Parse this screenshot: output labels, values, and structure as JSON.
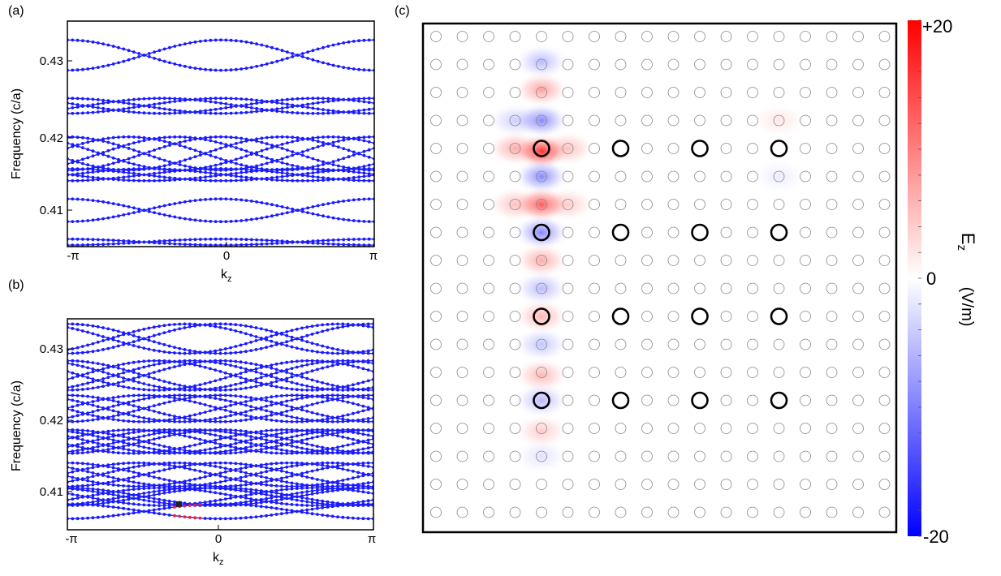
{
  "panels": {
    "a": {
      "label": "(a)",
      "ylabel": "Frequency (c/a)",
      "xlabel": "k",
      "xlabel_sub": "z",
      "xticks": [
        "-π",
        "0",
        "π"
      ],
      "yticks": [
        "0.43",
        "0.42",
        "0.41"
      ]
    },
    "b": {
      "label": "(b)",
      "ylabel": "Frequency (c/a)",
      "xlabel": "k",
      "xlabel_sub": "z",
      "xticks": [
        "-π",
        "0",
        "π"
      ],
      "yticks": [
        "0.43",
        "0.42",
        "0.41"
      ]
    },
    "c": {
      "label": "(c)",
      "colorbar_title": "E",
      "colorbar_title_sub": "z",
      "colorbar_unit": "(V/m)",
      "colorbar_ticks": [
        "+20",
        "0",
        "-20"
      ]
    }
  },
  "colors": {
    "band": "#1a1aff",
    "highlight": "#e8203a",
    "marker": "#222222",
    "cmap_pos": "#ff0000",
    "cmap_neg": "#0000ff"
  },
  "chart_data": [
    {
      "panel": "a",
      "type": "line",
      "xlabel": "kz",
      "ylabel": "Frequency (c/a)",
      "xlim": [
        -3.1416,
        3.1416
      ],
      "ylim": [
        0.4047,
        0.4345
      ],
      "grid": false,
      "band_groups": [
        {
          "center": 0.43,
          "half_width": 0.002,
          "phases": [
            0.0
          ]
        },
        {
          "center": 0.4233,
          "half_width": 0.001,
          "phases": [
            0.0,
            1.2
          ]
        },
        {
          "center": 0.417,
          "half_width": 0.0022,
          "phases": [
            0.0,
            0.9,
            1.9
          ]
        },
        {
          "center": 0.4142,
          "half_width": 0.0008,
          "phases": [
            0.0,
            1.5
          ]
        },
        {
          "center": 0.4095,
          "half_width": 0.0015,
          "phases": [
            0.0
          ]
        },
        {
          "center": 0.4053,
          "half_width": 0.0004,
          "phases": [
            0.0
          ]
        }
      ]
    },
    {
      "panel": "b",
      "type": "line",
      "xlabel": "kz",
      "ylabel": "Frequency (c/a)",
      "xlim": [
        -3.1416,
        3.1416
      ],
      "ylim": [
        0.4055,
        0.4342
      ],
      "grid": false,
      "band_groups": [
        {
          "center": 0.4315,
          "half_width": 0.002,
          "phases": [
            0.0,
            0.7
          ]
        },
        {
          "center": 0.4265,
          "half_width": 0.002,
          "phases": [
            0.0,
            0.6,
            1.3
          ]
        },
        {
          "center": 0.422,
          "half_width": 0.0018,
          "phases": [
            0.0,
            0.8,
            1.6
          ]
        },
        {
          "center": 0.4175,
          "half_width": 0.0016,
          "phases": [
            0.0,
            0.5,
            1.1,
            1.8
          ]
        },
        {
          "center": 0.413,
          "half_width": 0.0016,
          "phases": [
            0.0,
            0.9,
            1.7
          ]
        },
        {
          "center": 0.41,
          "half_width": 0.0012,
          "phases": [
            0.0,
            0.4,
            1.2
          ]
        },
        {
          "center": 0.408,
          "half_width": 0.001,
          "phases": [
            0.0
          ]
        }
      ],
      "highlight": {
        "x_range": [
          -0.95,
          -0.4
        ],
        "note": "red segment"
      },
      "marker": {
        "x": -0.85,
        "y": 0.409
      }
    },
    {
      "panel": "c",
      "type": "heatmap",
      "title": "Ez (V/m)",
      "color_range": [
        -20,
        20
      ],
      "lattice": {
        "cols": 18,
        "rows": 18
      },
      "bold_rods": [
        [
          4,
          4
        ],
        [
          7,
          4
        ],
        [
          10,
          4
        ],
        [
          13,
          4
        ],
        [
          4,
          7
        ],
        [
          7,
          7
        ],
        [
          10,
          7
        ],
        [
          13,
          7
        ],
        [
          4,
          10
        ],
        [
          7,
          10
        ],
        [
          10,
          10
        ],
        [
          13,
          10
        ],
        [
          4,
          13
        ],
        [
          7,
          13
        ],
        [
          10,
          13
        ],
        [
          13,
          13
        ]
      ]
    }
  ]
}
